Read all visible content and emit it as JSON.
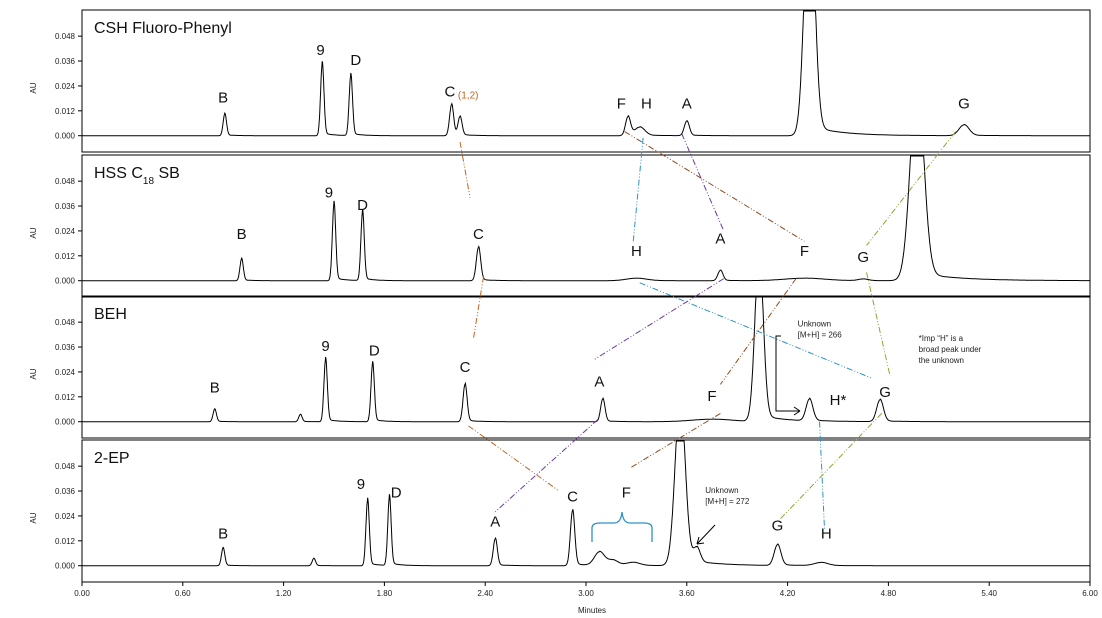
{
  "chart_data": {
    "type": "line",
    "xlabel": "Minutes",
    "ylabel": "AU",
    "xlim": [
      0,
      6
    ],
    "ylim": [
      -0.004,
      0.05
    ],
    "x_ticks": [
      "0.00",
      "0.60",
      "1.20",
      "1.80",
      "2.40",
      "3.00",
      "3.60",
      "4.20",
      "4.80",
      "5.40",
      "6.00"
    ],
    "y_ticks": [
      "0.000",
      "0.012",
      "0.024",
      "0.036",
      "0.048"
    ],
    "panels": [
      {
        "title": "CSH Fluoro-Phenyl",
        "baseline": 0.0,
        "peaks": [
          {
            "t": 0.85,
            "h": 0.0105,
            "w": 0.01
          },
          {
            "t": 1.43,
            "h": 0.0345,
            "w": 0.01
          },
          {
            "t": 1.6,
            "h": 0.029,
            "w": 0.01
          },
          {
            "t": 2.2,
            "h": 0.015,
            "w": 0.012
          },
          {
            "t": 2.25,
            "h": 0.009,
            "w": 0.012
          },
          {
            "t": 3.25,
            "h": 0.009,
            "w": 0.015
          },
          {
            "t": 3.32,
            "h": 0.004,
            "w": 0.03
          },
          {
            "t": 3.6,
            "h": 0.007,
            "w": 0.015
          },
          {
            "t": 4.33,
            "h": 0.12,
            "w": 0.03
          },
          {
            "t": 5.25,
            "h": 0.0052,
            "w": 0.03
          }
        ],
        "labels": [
          {
            "text": "B",
            "t": 0.84,
            "y": 0.016
          },
          {
            "text": "9",
            "t": 1.42,
            "y": 0.039
          },
          {
            "text": "D",
            "t": 1.63,
            "y": 0.034
          },
          {
            "text": "C",
            "t": 2.19,
            "y": 0.019,
            "sub": "(1,2)"
          },
          {
            "text": "F",
            "t": 3.21,
            "y": 0.013
          },
          {
            "text": "H",
            "t": 3.36,
            "y": 0.013
          },
          {
            "text": "A",
            "t": 3.6,
            "y": 0.013
          },
          {
            "text": "G",
            "t": 5.25,
            "y": 0.013
          }
        ]
      },
      {
        "title": "HSS C",
        "title_sub": "18",
        "title_suffix": "SB",
        "baseline": 0.0,
        "peaks": [
          {
            "t": 0.95,
            "h": 0.0105,
            "w": 0.01
          },
          {
            "t": 1.5,
            "h": 0.037,
            "w": 0.01
          },
          {
            "t": 1.67,
            "h": 0.033,
            "w": 0.01
          },
          {
            "t": 2.36,
            "h": 0.016,
            "w": 0.013
          },
          {
            "t": 3.3,
            "h": 0.0012,
            "w": 0.06
          },
          {
            "t": 3.8,
            "h": 0.005,
            "w": 0.015
          },
          {
            "t": 4.3,
            "h": 0.0012,
            "w": 0.12
          },
          {
            "t": 4.65,
            "h": 0.0008,
            "w": 0.03
          },
          {
            "t": 4.97,
            "h": 0.095,
            "w": 0.04
          }
        ],
        "labels": [
          {
            "text": "B",
            "t": 0.95,
            "y": 0.02
          },
          {
            "text": "9",
            "t": 1.47,
            "y": 0.04
          },
          {
            "text": "D",
            "t": 1.67,
            "y": 0.034
          },
          {
            "text": "C",
            "t": 2.36,
            "y": 0.02
          },
          {
            "text": "H",
            "t": 3.3,
            "y": 0.012
          },
          {
            "text": "A",
            "t": 3.8,
            "y": 0.018
          },
          {
            "text": "F",
            "t": 4.3,
            "y": 0.012
          },
          {
            "text": "G",
            "t": 4.65,
            "y": 0.009
          }
        ]
      },
      {
        "title": "BEH",
        "baseline": 0.0,
        "peaks": [
          {
            "t": 0.79,
            "h": 0.006,
            "w": 0.01
          },
          {
            "t": 1.3,
            "h": 0.0035,
            "w": 0.01
          },
          {
            "t": 1.45,
            "h": 0.03,
            "w": 0.01
          },
          {
            "t": 1.73,
            "h": 0.028,
            "w": 0.01
          },
          {
            "t": 2.28,
            "h": 0.018,
            "w": 0.012
          },
          {
            "t": 3.1,
            "h": 0.011,
            "w": 0.013
          },
          {
            "t": 3.75,
            "h": 0.0012,
            "w": 0.12
          },
          {
            "t": 4.03,
            "h": 0.08,
            "w": 0.025
          },
          {
            "t": 4.33,
            "h": 0.0105,
            "w": 0.02
          },
          {
            "t": 4.75,
            "h": 0.0105,
            "w": 0.02
          }
        ],
        "labels": [
          {
            "text": "B",
            "t": 0.79,
            "y": 0.014
          },
          {
            "text": "9",
            "t": 1.45,
            "y": 0.034
          },
          {
            "text": "D",
            "t": 1.74,
            "y": 0.032
          },
          {
            "text": "C",
            "t": 2.28,
            "y": 0.024
          },
          {
            "text": "A",
            "t": 3.08,
            "y": 0.017
          },
          {
            "text": "F",
            "t": 3.75,
            "y": 0.01
          },
          {
            "text": "H*",
            "t": 4.5,
            "y": 0.008
          },
          {
            "text": "G",
            "t": 4.78,
            "y": 0.012
          }
        ],
        "notes": [
          {
            "lines": [
              "Unknown",
              "[M+H] = 266"
            ],
            "t": 4.26,
            "y": 0.046
          },
          {
            "lines": [
              "*Imp “H” is a",
              "broad peak under",
              "the unknown"
            ],
            "t": 4.98,
            "y": 0.039
          }
        ]
      },
      {
        "title": "2-EP",
        "baseline": 0.0,
        "peaks": [
          {
            "t": 0.84,
            "h": 0.0085,
            "w": 0.01
          },
          {
            "t": 1.38,
            "h": 0.0035,
            "w": 0.01
          },
          {
            "t": 1.7,
            "h": 0.0315,
            "w": 0.01
          },
          {
            "t": 1.83,
            "h": 0.033,
            "w": 0.01
          },
          {
            "t": 2.46,
            "h": 0.013,
            "w": 0.012
          },
          {
            "t": 2.92,
            "h": 0.0265,
            "w": 0.013
          },
          {
            "t": 3.08,
            "h": 0.0065,
            "w": 0.03
          },
          {
            "t": 3.16,
            "h": 0.0025,
            "w": 0.03
          },
          {
            "t": 3.28,
            "h": 0.0015,
            "w": 0.04
          },
          {
            "t": 3.56,
            "h": 0.08,
            "w": 0.03
          },
          {
            "t": 3.66,
            "h": 0.007,
            "w": 0.02
          },
          {
            "t": 4.14,
            "h": 0.01,
            "w": 0.02
          },
          {
            "t": 4.4,
            "h": 0.0015,
            "w": 0.04
          }
        ],
        "labels": [
          {
            "text": "B",
            "t": 0.84,
            "y": 0.013
          },
          {
            "text": "9",
            "t": 1.66,
            "y": 0.037
          },
          {
            "text": "D",
            "t": 1.87,
            "y": 0.033
          },
          {
            "text": "A",
            "t": 2.46,
            "y": 0.019
          },
          {
            "text": "C",
            "t": 2.92,
            "y": 0.031
          },
          {
            "text": "F",
            "t": 3.24,
            "y": 0.033
          },
          {
            "text": "G",
            "t": 4.14,
            "y": 0.017
          },
          {
            "text": "H",
            "t": 4.43,
            "y": 0.013
          }
        ],
        "notes": [
          {
            "lines": [
              "Unknown",
              "[M+H] = 272"
            ],
            "t": 3.71,
            "y": 0.035
          }
        ]
      }
    ],
    "connectors": [
      {
        "peak": "C",
        "color": "#c0651e",
        "pts": [
          [
            0,
            2.25,
            -0.003
          ],
          [
            1,
            2.31,
            0.04
          ],
          [
            1,
            2.39,
            0.002
          ],
          [
            2,
            2.33,
            0.04
          ],
          [
            2,
            2.3,
            -0.002
          ],
          [
            3,
            2.84,
            0.036
          ]
        ]
      },
      {
        "peak": "H",
        "color": "#2a93c8",
        "pts": [
          [
            0,
            3.34,
            -0.001
          ],
          [
            1,
            3.28,
            0.018
          ],
          [
            1,
            3.32,
            -0.001
          ],
          [
            2,
            4.7,
            0.021
          ],
          [
            2,
            4.39,
            0.0
          ],
          [
            3,
            4.42,
            0.017
          ]
        ]
      },
      {
        "peak": "A",
        "color": "#6a3aa0",
        "pts": [
          [
            0,
            3.57,
            0.001
          ],
          [
            1,
            3.82,
            0.024
          ],
          [
            1,
            3.82,
            0.001
          ],
          [
            2,
            3.05,
            0.03
          ],
          [
            2,
            3.07,
            0.001
          ],
          [
            3,
            2.46,
            0.026
          ]
        ]
      },
      {
        "peak": "F",
        "color": "#8a4b20",
        "pts": [
          [
            0,
            3.23,
            0.002
          ],
          [
            1,
            4.3,
            0.019
          ],
          [
            1,
            4.25,
            0.001
          ],
          [
            2,
            3.8,
            0.018
          ],
          [
            2,
            3.8,
            0.004
          ],
          [
            3,
            3.26,
            0.047
          ]
        ]
      },
      {
        "peak": "G",
        "color": "#88a832",
        "pts": [
          [
            0,
            5.2,
            0.002
          ],
          [
            1,
            4.67,
            0.017
          ],
          [
            1,
            4.67,
            0.004
          ],
          [
            2,
            4.81,
            0.022
          ],
          [
            2,
            4.76,
            0.004
          ],
          [
            3,
            4.15,
            0.022
          ]
        ]
      }
    ]
  }
}
